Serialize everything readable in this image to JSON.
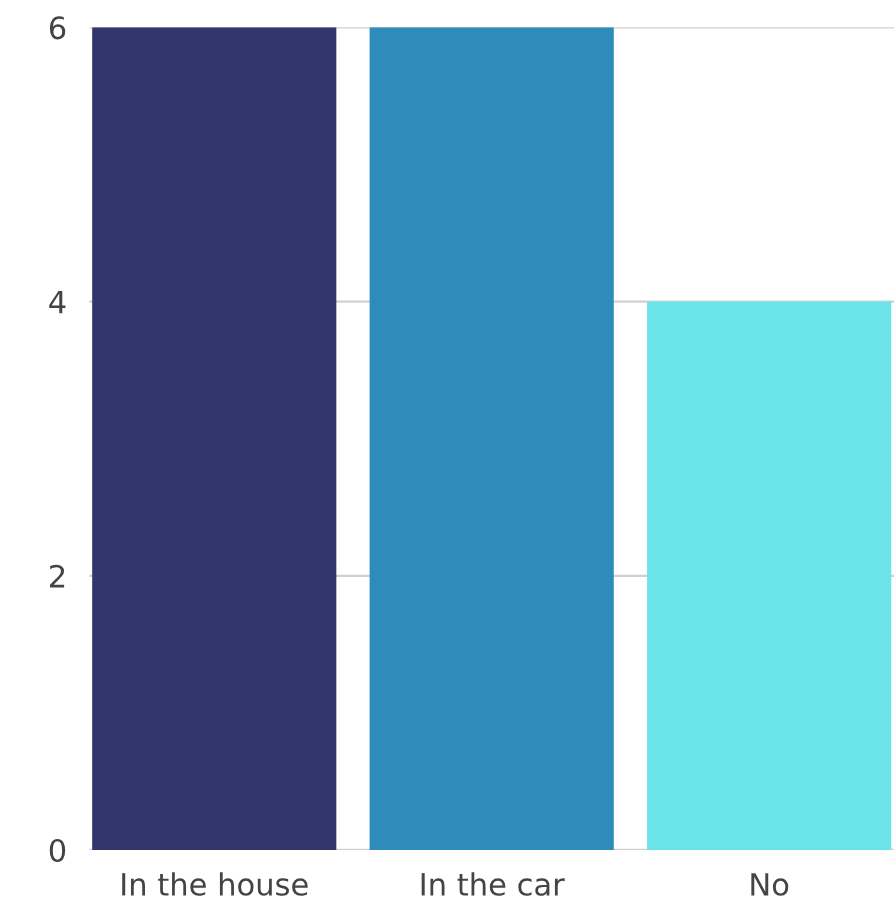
{
  "chart_data": {
    "type": "bar",
    "categories": [
      "In the house",
      "In the car",
      "No"
    ],
    "values": [
      6,
      6,
      4
    ],
    "colors": [
      "#32366b",
      "#2e8bba",
      "#6ae4e9"
    ],
    "ylim": [
      0,
      6
    ],
    "yticks": [
      0,
      2,
      4,
      6
    ],
    "grid": "y",
    "legend": false
  }
}
